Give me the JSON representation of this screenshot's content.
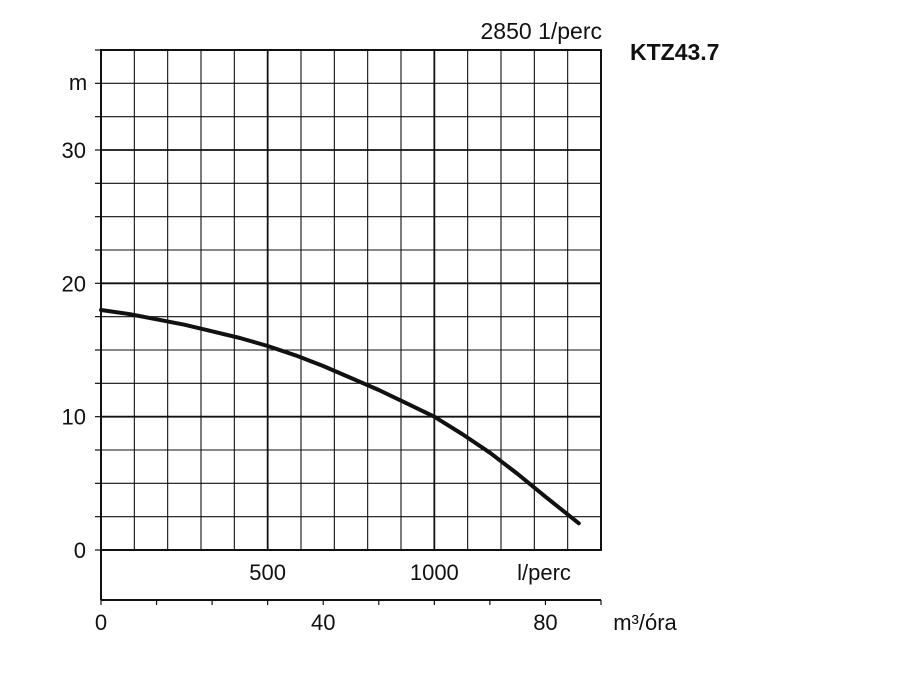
{
  "chart_data": {
    "type": "line",
    "title": "KTZ43.7",
    "subtitle": "2850 1/perc",
    "ylabel": "m",
    "ylim": [
      0,
      37.5
    ],
    "y_ticks": [
      "0",
      "10",
      "20",
      "30"
    ],
    "x_flow_unit": "l/perc",
    "x_flow_ticks": [
      "500",
      "1000"
    ],
    "xlabel": "m³/óra",
    "x_ticks": [
      "0",
      "40",
      "80"
    ],
    "xlim": [
      0,
      90
    ],
    "grid": true,
    "series": [
      {
        "x": [
          0,
          5,
          10,
          15,
          20,
          25,
          30,
          35,
          40,
          45,
          50,
          55,
          60,
          65,
          70,
          75,
          80,
          86
        ],
        "y": [
          18.0,
          17.7,
          17.3,
          16.9,
          16.4,
          15.9,
          15.3,
          14.6,
          13.8,
          12.9,
          12.0,
          11.0,
          10.0,
          8.7,
          7.3,
          5.7,
          4.0,
          2.0
        ]
      }
    ]
  }
}
